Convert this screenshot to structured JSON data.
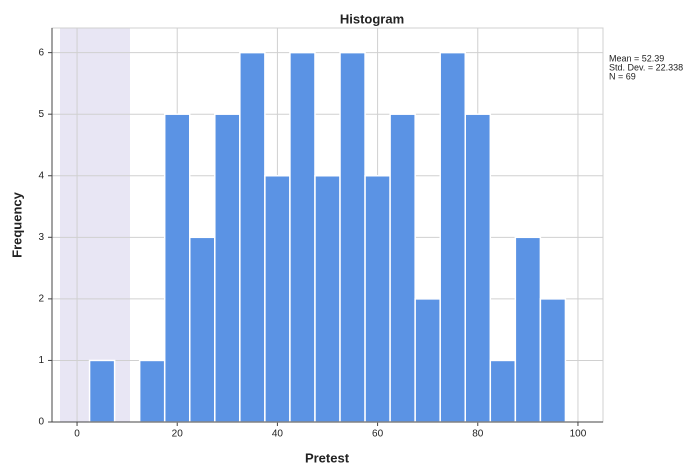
{
  "chart_data": {
    "type": "histogram",
    "title": "Histogram",
    "xlabel": "Pretest",
    "ylabel": "Frequency",
    "bins": [
      2.5,
      7.5,
      12.5,
      17.5,
      22.5,
      27.5,
      32.5,
      37.5,
      42.5,
      47.5,
      52.5,
      57.5,
      62.5,
      67.5,
      72.5,
      77.5,
      82.5,
      87.5,
      92.5,
      97.5
    ],
    "counts": [
      1,
      0,
      1,
      5,
      3,
      5,
      6,
      4,
      6,
      4,
      6,
      4,
      5,
      2,
      6,
      5,
      1,
      3,
      2
    ],
    "color": "#5b93e4",
    "xlim": [
      -5,
      105
    ],
    "xticks": [
      0,
      20,
      40,
      60,
      80,
      100
    ],
    "ylim": [
      0,
      6.4
    ],
    "yticks": [
      0,
      1,
      2,
      3,
      4,
      5,
      6
    ],
    "grid": true,
    "stats": [
      "Mean = 52.39",
      "Std. Dev. = 22.338",
      "N = 69"
    ]
  }
}
